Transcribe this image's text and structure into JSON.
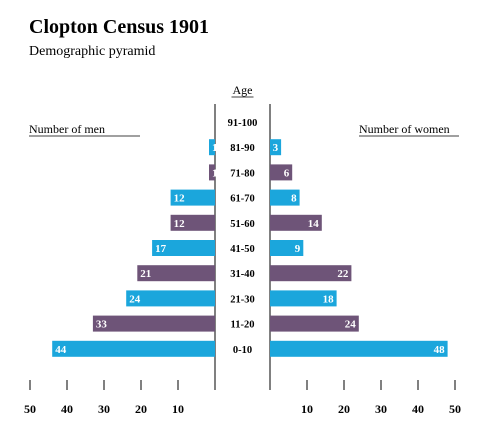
{
  "title": "Clopton Census 1901",
  "subtitle": "Demographic pyramid",
  "chart_data": {
    "type": "bar",
    "orientation": "horizontal-pyramid",
    "title": "Clopton Census 1901",
    "subtitle": "Demographic pyramid",
    "category_label": "Age",
    "categories": [
      "91-100",
      "81-90",
      "71-80",
      "61-70",
      "51-60",
      "41-50",
      "31-40",
      "21-30",
      "11-20",
      "0-10"
    ],
    "series": [
      {
        "name": "Number of men",
        "values": [
          0,
          1,
          1,
          12,
          12,
          17,
          21,
          24,
          33,
          44
        ]
      },
      {
        "name": "Number of women",
        "values": [
          0,
          3,
          6,
          8,
          14,
          9,
          22,
          18,
          24,
          48
        ]
      }
    ],
    "xlim": [
      0,
      50
    ],
    "ticks": [
      10,
      20,
      30,
      40,
      50
    ],
    "colors": {
      "cyan": "#1ba6dc",
      "purple": "#6e5478"
    },
    "bar_color_pattern": [
      "cyan",
      "cyan",
      "purple",
      "cyan",
      "purple",
      "cyan",
      "purple",
      "cyan",
      "purple",
      "cyan"
    ],
    "grid": false
  }
}
